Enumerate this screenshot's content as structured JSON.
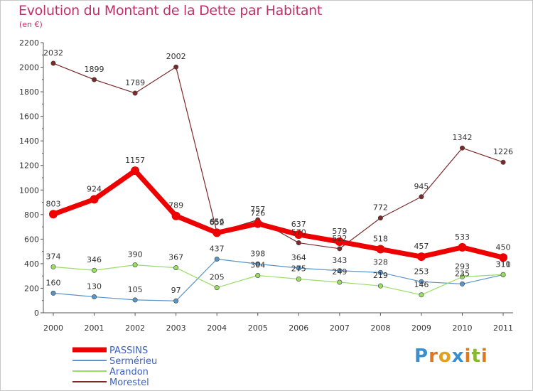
{
  "chart_data": {
    "type": "line",
    "title": "Evolution du Montant de la Dette par Habitant",
    "subtitle": "(en €)",
    "x": [
      "2000",
      "2001",
      "2002",
      "2003",
      "2004",
      "2005",
      "2006",
      "2007",
      "2008",
      "2009",
      "2010",
      "2011"
    ],
    "ylim": [
      0,
      2200
    ],
    "yticks": [
      0,
      200,
      400,
      600,
      800,
      1000,
      1200,
      1400,
      1600,
      1800,
      2000,
      2200
    ],
    "grid": false,
    "legend_position": "bottom-left",
    "series": [
      {
        "name": "PASSINS",
        "color": "#ee0000",
        "values": [
          803,
          924,
          1157,
          789,
          652,
          726,
          637,
          579,
          518,
          457,
          533,
          450
        ]
      },
      {
        "name": "Sermérieu",
        "color": "#5b95c8",
        "values": [
          160,
          130,
          105,
          97,
          437,
          398,
          364,
          343,
          328,
          253,
          235,
          310
        ]
      },
      {
        "name": "Arandon",
        "color": "#99dd66",
        "values": [
          374,
          346,
          390,
          367,
          205,
          304,
          275,
          249,
          219,
          146,
          293,
          311
        ]
      },
      {
        "name": "Morestel",
        "color": "#7a2a2a",
        "values": [
          2032,
          1899,
          1789,
          2002,
          656,
          757,
          570,
          522,
          772,
          945,
          1342,
          1226
        ]
      }
    ]
  },
  "logo": {
    "text": "Proxiti",
    "letters": [
      "P",
      "r",
      "o",
      "x",
      "i",
      "t",
      "i"
    ]
  }
}
